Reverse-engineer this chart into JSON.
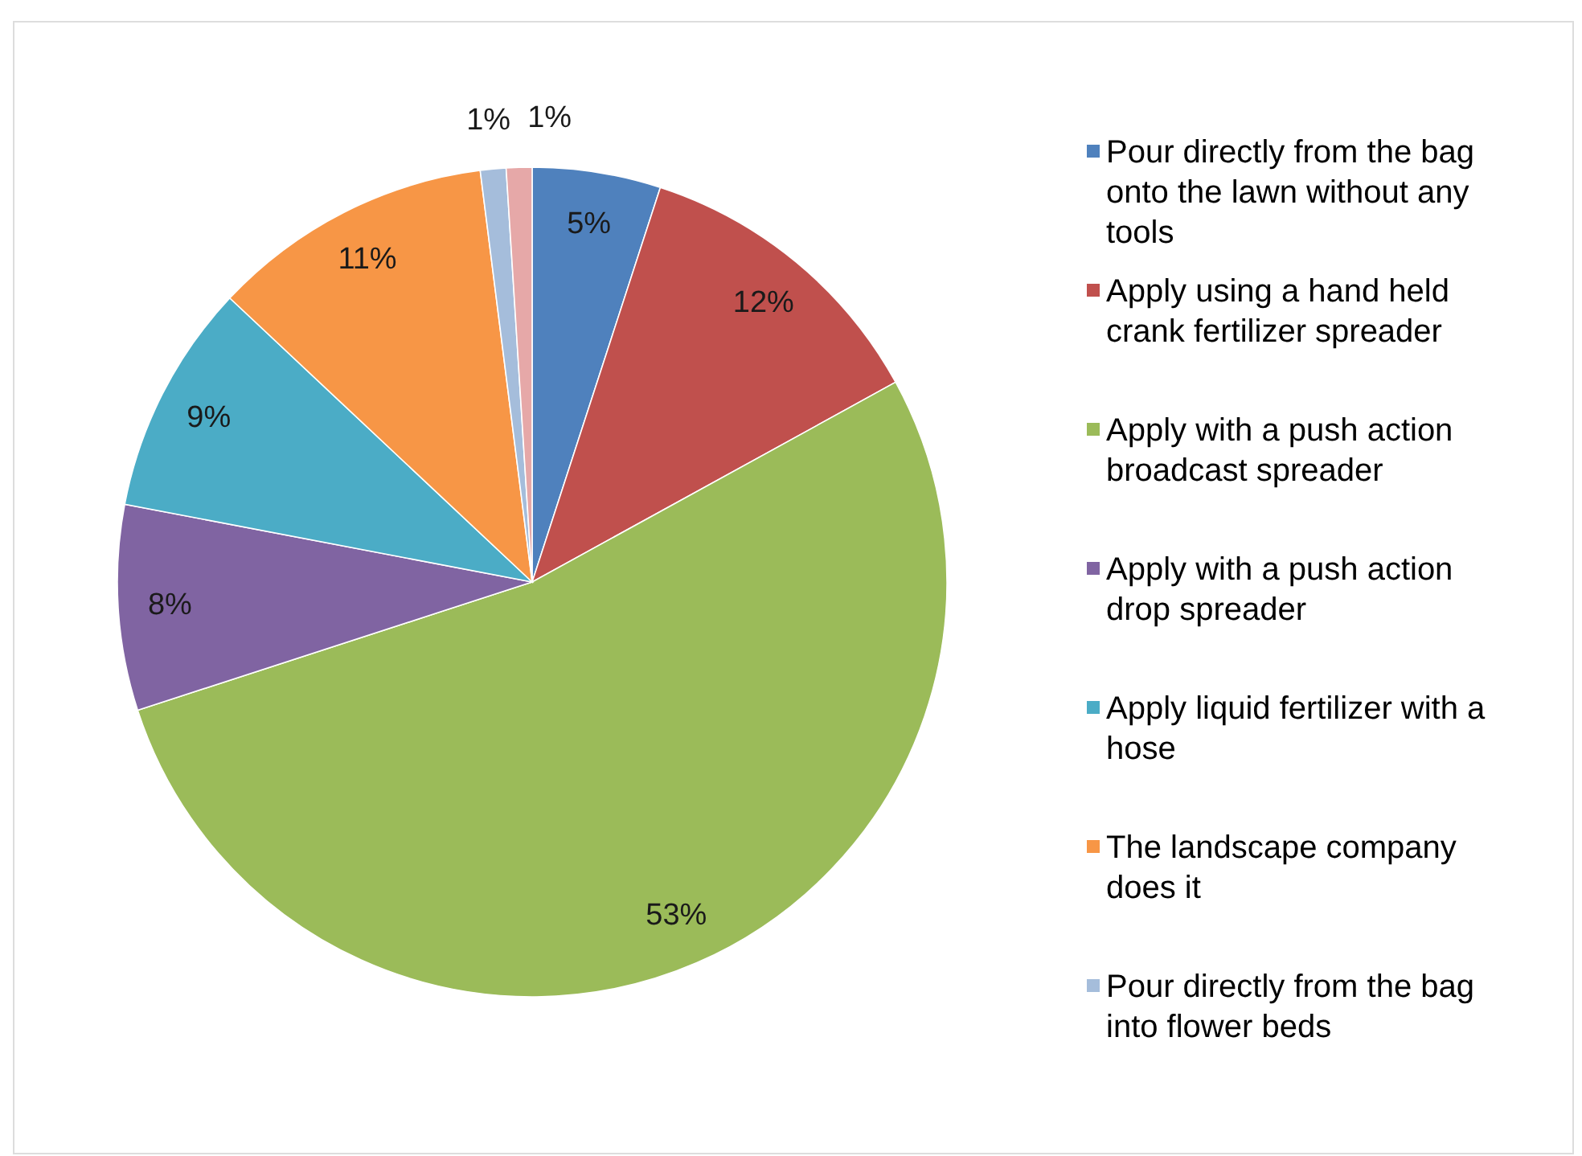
{
  "chart_data": {
    "type": "pie",
    "categories": [
      "Pour directly from the bag onto the lawn without any tools",
      "Apply using a hand held crank fertilizer spreader",
      "Apply with a push action broadcast spreader",
      "Apply with a push action drop spreader",
      "Apply liquid fertilizer with a hose",
      "The landscape company does it",
      "Pour directly from the bag into flower beds",
      null
    ],
    "values": [
      5,
      12,
      53,
      8,
      9,
      11,
      1,
      1
    ],
    "colors": [
      "#4f81bd",
      "#c0504d",
      "#9bbb59",
      "#8064a2",
      "#4bacc6",
      "#f79646",
      "#a5bddb",
      "#e6a8a8"
    ],
    "value_labels": [
      "5%",
      "12%",
      "53%",
      "8%",
      "9%",
      "11%",
      "1%",
      "1%"
    ],
    "legend": "right"
  }
}
